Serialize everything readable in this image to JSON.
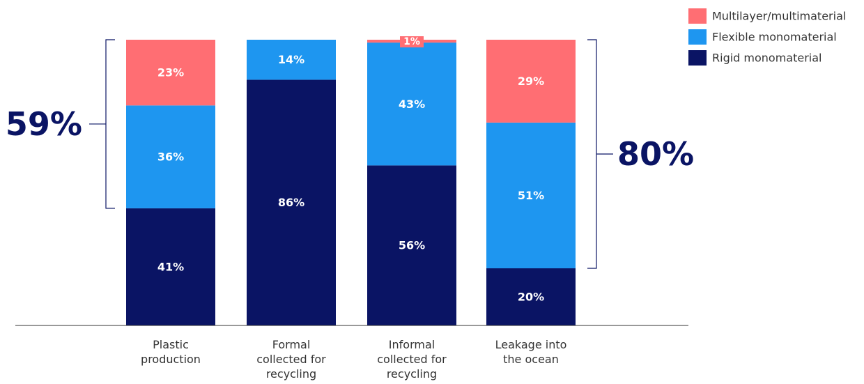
{
  "chart_data": {
    "type": "bar",
    "stacked": true,
    "ylim": [
      0,
      100
    ],
    "grid": false,
    "legend_position": "top-right",
    "categories": [
      [
        "Plastic",
        "production"
      ],
      [
        "Formal",
        "collected for",
        "recycling"
      ],
      [
        "Informal",
        "collected for",
        "recycling"
      ],
      [
        "Leakage into",
        "the ocean"
      ]
    ],
    "series": [
      {
        "name": "Rigid monomaterial",
        "color": "#0a1464",
        "values": [
          41,
          86,
          56,
          20
        ],
        "labels": [
          "41%",
          "86%",
          "56%",
          "20%"
        ]
      },
      {
        "name": "Flexible monomaterial",
        "color": "#1e96f0",
        "values": [
          36,
          14,
          43,
          51
        ],
        "labels": [
          "36%",
          "14%",
          "43%",
          "51%"
        ]
      },
      {
        "name": "Multilayer/multimaterial",
        "color": "#ff6e73",
        "values": [
          23,
          0,
          1,
          29
        ],
        "labels": [
          "23%",
          "",
          "1%",
          "29%"
        ]
      }
    ],
    "legend": [
      "Multilayer/multimaterial",
      "Flexible monomaterial",
      "Rigid monomaterial"
    ],
    "annotations": [
      {
        "label": "59%",
        "bar": 0,
        "from": 41,
        "to": 100,
        "side": "left"
      },
      {
        "label": "80%",
        "bar": 3,
        "from": 20,
        "to": 100,
        "side": "right"
      }
    ]
  }
}
